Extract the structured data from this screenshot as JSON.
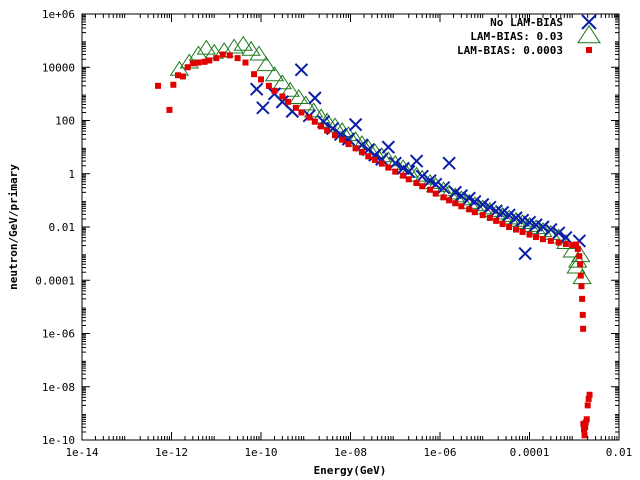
{
  "chart_data": {
    "type": "scatter",
    "title": "",
    "xlabel": "Energy(GeV)",
    "ylabel": "neutron/GeV/primary",
    "xscale": "log",
    "yscale": "log",
    "xlim": [
      1e-14,
      0.01
    ],
    "ylim": [
      1e-10,
      1000000.0
    ],
    "grid": false,
    "legend_position": "top-right",
    "x_ticks": [
      {
        "value": 1e-14,
        "label": "1e-14"
      },
      {
        "value": 1e-12,
        "label": "1e-12"
      },
      {
        "value": 1e-10,
        "label": "1e-10"
      },
      {
        "value": 1e-08,
        "label": "1e-08"
      },
      {
        "value": 1e-06,
        "label": "1e-06"
      },
      {
        "value": 0.0001,
        "label": "0.0001"
      },
      {
        "value": 0.01,
        "label": "0.01"
      }
    ],
    "y_ticks": [
      {
        "value": 1e-10,
        "label": "1e-10"
      },
      {
        "value": 1e-08,
        "label": "1e-08"
      },
      {
        "value": 1e-06,
        "label": "1e-06"
      },
      {
        "value": 0.0001,
        "label": "0.0001"
      },
      {
        "value": 0.01,
        "label": "0.01"
      },
      {
        "value": 1,
        "label": "1"
      },
      {
        "value": 100,
        "label": "100"
      },
      {
        "value": 10000.0,
        "label": "10000"
      },
      {
        "value": 1000000.0,
        "label": "1e+06"
      }
    ],
    "series": [
      {
        "name": "No LAM-BIAS",
        "marker": "x",
        "color": "#0a1fa8",
        "points": [
          [
            1.1e-10,
            300
          ],
          [
            8e-11,
            1500
          ],
          [
            2e-10,
            1000
          ],
          [
            3e-10,
            500
          ],
          [
            5e-10,
            220
          ],
          [
            8e-10,
            8000
          ],
          [
            1.2e-09,
            150
          ],
          [
            1.6e-09,
            700
          ],
          [
            2.5e-09,
            90
          ],
          [
            4e-09,
            50
          ],
          [
            6e-09,
            30
          ],
          [
            9e-09,
            20
          ],
          [
            1.3e-08,
            70
          ],
          [
            1.8e-08,
            12
          ],
          [
            2.5e-08,
            8
          ],
          [
            3.5e-08,
            5
          ],
          [
            5e-08,
            3.5
          ],
          [
            7e-08,
            10
          ],
          [
            1e-07,
            2.5
          ],
          [
            1.5e-07,
            1.6
          ],
          [
            2e-07,
            1.2
          ],
          [
            3e-07,
            3
          ],
          [
            4e-07,
            0.8
          ],
          [
            6e-07,
            0.55
          ],
          [
            8e-07,
            0.4
          ],
          [
            1.2e-06,
            0.3
          ],
          [
            1.6e-06,
            2.5
          ],
          [
            2.2e-06,
            0.2
          ],
          [
            3e-06,
            0.15
          ],
          [
            4.5e-06,
            0.12
          ],
          [
            6e-06,
            0.09
          ],
          [
            9e-06,
            0.07
          ],
          [
            1.3e-05,
            0.055
          ],
          [
            1.8e-05,
            0.04
          ],
          [
            2.5e-05,
            0.035
          ],
          [
            3.5e-05,
            0.028
          ],
          [
            5e-05,
            0.022
          ],
          [
            7e-05,
            0.018
          ],
          [
            0.0001,
            0.015
          ],
          [
            0.00014,
            0.012
          ],
          [
            0.0002,
            0.01
          ],
          [
            0.0003,
            0.008
          ],
          [
            0.00045,
            0.006
          ],
          [
            0.00065,
            0.004
          ],
          [
            8e-05,
            0.001
          ],
          [
            0.0013,
            0.003
          ]
        ]
      },
      {
        "name": "LAM-BIAS: 0.03",
        "marker": "triangle",
        "color": "#1f7a1f",
        "points": [
          [
            1.5e-12,
            8000
          ],
          [
            2.5e-12,
            15000
          ],
          [
            4e-12,
            30000
          ],
          [
            6e-12,
            50000
          ],
          [
            9e-12,
            35000
          ],
          [
            1.5e-11,
            40000
          ],
          [
            2.5e-11,
            55000
          ],
          [
            4e-11,
            70000
          ],
          [
            6e-11,
            45000
          ],
          [
            9e-11,
            30000
          ],
          [
            1.3e-10,
            12000
          ],
          [
            2e-10,
            5000
          ],
          [
            3e-10,
            2500
          ],
          [
            4.5e-10,
            1300
          ],
          [
            7e-10,
            700
          ],
          [
            1e-09,
            400
          ],
          [
            1.5e-09,
            220
          ],
          [
            2.2e-09,
            130
          ],
          [
            3e-09,
            90
          ],
          [
            4.5e-09,
            60
          ],
          [
            6.5e-09,
            40
          ],
          [
            9e-09,
            28
          ],
          [
            1.3e-08,
            18
          ],
          [
            1.8e-08,
            13
          ],
          [
            2.5e-08,
            9
          ],
          [
            3.5e-08,
            6.5
          ],
          [
            5e-08,
            4.5
          ],
          [
            7e-08,
            3.2
          ],
          [
            1e-07,
            2.3
          ],
          [
            1.5e-07,
            1.6
          ],
          [
            2e-07,
            1.2
          ],
          [
            3e-07,
            0.85
          ],
          [
            4e-07,
            0.65
          ],
          [
            6e-07,
            0.45
          ],
          [
            8e-07,
            0.34
          ],
          [
            1.2e-06,
            0.24
          ],
          [
            1.6e-06,
            0.18
          ],
          [
            2.2e-06,
            0.14
          ],
          [
            3e-06,
            0.11
          ],
          [
            4.5e-06,
            0.08
          ],
          [
            6e-06,
            0.065
          ],
          [
            9e-06,
            0.05
          ],
          [
            1.3e-05,
            0.04
          ],
          [
            1.8e-05,
            0.032
          ],
          [
            2.5e-05,
            0.026
          ],
          [
            3.5e-05,
            0.021
          ],
          [
            5e-05,
            0.017
          ],
          [
            7e-05,
            0.014
          ],
          [
            0.0001,
            0.011
          ],
          [
            0.00014,
            0.009
          ],
          [
            0.0002,
            0.007
          ],
          [
            0.0003,
            0.0055
          ],
          [
            0.00045,
            0.004
          ],
          [
            0.00065,
            0.0025
          ],
          [
            0.0009,
            0.0012
          ],
          [
            0.0012,
            0.0005
          ],
          [
            0.0015,
            0.00012
          ],
          [
            0.0011,
            0.0003
          ],
          [
            0.0014,
            0.0008
          ]
        ]
      },
      {
        "name": "LAM-BIAS: 0.0003",
        "marker": "dot",
        "color": "#e00000",
        "points": [
          [
            5e-13,
            2000
          ],
          [
            9e-13,
            250
          ],
          [
            1.1e-12,
            2200
          ],
          [
            1.4e-12,
            5000
          ],
          [
            1.8e-12,
            4500
          ],
          [
            2.3e-12,
            10000
          ],
          [
            3e-12,
            14000
          ],
          [
            4e-12,
            15000
          ],
          [
            5.5e-12,
            16000
          ],
          [
            7e-12,
            18000
          ],
          [
            1e-11,
            22000
          ],
          [
            1.4e-11,
            30000
          ],
          [
            2e-11,
            28000
          ],
          [
            3e-11,
            22000
          ],
          [
            4.5e-11,
            15000
          ],
          [
            7e-11,
            5500
          ],
          [
            1e-10,
            3500
          ],
          [
            1.5e-10,
            2000
          ],
          [
            2e-10,
            1300
          ],
          [
            3e-10,
            800
          ],
          [
            4e-10,
            500
          ],
          [
            6e-10,
            300
          ],
          [
            8e-10,
            200
          ],
          [
            1.2e-09,
            130
          ],
          [
            1.6e-09,
            90
          ],
          [
            2.2e-09,
            60
          ],
          [
            3e-09,
            42
          ],
          [
            4.5e-09,
            28
          ],
          [
            6.5e-09,
            19
          ],
          [
            9e-09,
            13
          ],
          [
            1.3e-08,
            9
          ],
          [
            1.8e-08,
            6.5
          ],
          [
            2.5e-08,
            4.5
          ],
          [
            3.5e-08,
            3.3
          ],
          [
            5e-08,
            2.4
          ],
          [
            7e-08,
            1.7
          ],
          [
            1e-07,
            1.2
          ],
          [
            1.5e-07,
            0.85
          ],
          [
            2e-07,
            0.62
          ],
          [
            3e-07,
            0.45
          ],
          [
            4e-07,
            0.34
          ],
          [
            6e-07,
            0.25
          ],
          [
            8e-07,
            0.18
          ],
          [
            1.2e-06,
            0.13
          ],
          [
            1.6e-06,
            0.1
          ],
          [
            2.2e-06,
            0.078
          ],
          [
            3e-06,
            0.06
          ],
          [
            4.5e-06,
            0.046
          ],
          [
            6e-06,
            0.036
          ],
          [
            9e-06,
            0.028
          ],
          [
            1.3e-05,
            0.022
          ],
          [
            1.8e-05,
            0.017
          ],
          [
            2.5e-05,
            0.013
          ],
          [
            3.5e-05,
            0.01
          ],
          [
            5e-05,
            0.008
          ],
          [
            7e-05,
            0.0065
          ],
          [
            0.0001,
            0.0052
          ],
          [
            0.00014,
            0.0042
          ],
          [
            0.0002,
            0.0035
          ],
          [
            0.0003,
            0.003
          ],
          [
            0.00045,
            0.0026
          ],
          [
            0.00065,
            0.0023
          ],
          [
            0.0009,
            0.0021
          ],
          [
            0.0011,
            0.0022
          ],
          [
            0.0012,
            0.0015
          ],
          [
            0.0013,
            0.0008
          ],
          [
            0.00135,
            0.0004
          ],
          [
            0.0014,
            0.00015
          ],
          [
            0.00145,
            6e-05
          ],
          [
            0.0015,
            2e-05
          ],
          [
            0.00155,
            5e-06
          ],
          [
            0.00158,
            1.5e-06
          ],
          [
            0.0016,
            4e-10
          ],
          [
            0.00165,
            2.5e-10
          ],
          [
            0.0017,
            1.5e-10
          ],
          [
            0.00175,
            3e-10
          ],
          [
            0.0018,
            4.5e-10
          ],
          [
            0.0019,
            6e-10
          ],
          [
            0.002,
            2e-09
          ],
          [
            0.0021,
            3.5e-09
          ],
          [
            0.0022,
            5e-09
          ]
        ]
      }
    ]
  }
}
